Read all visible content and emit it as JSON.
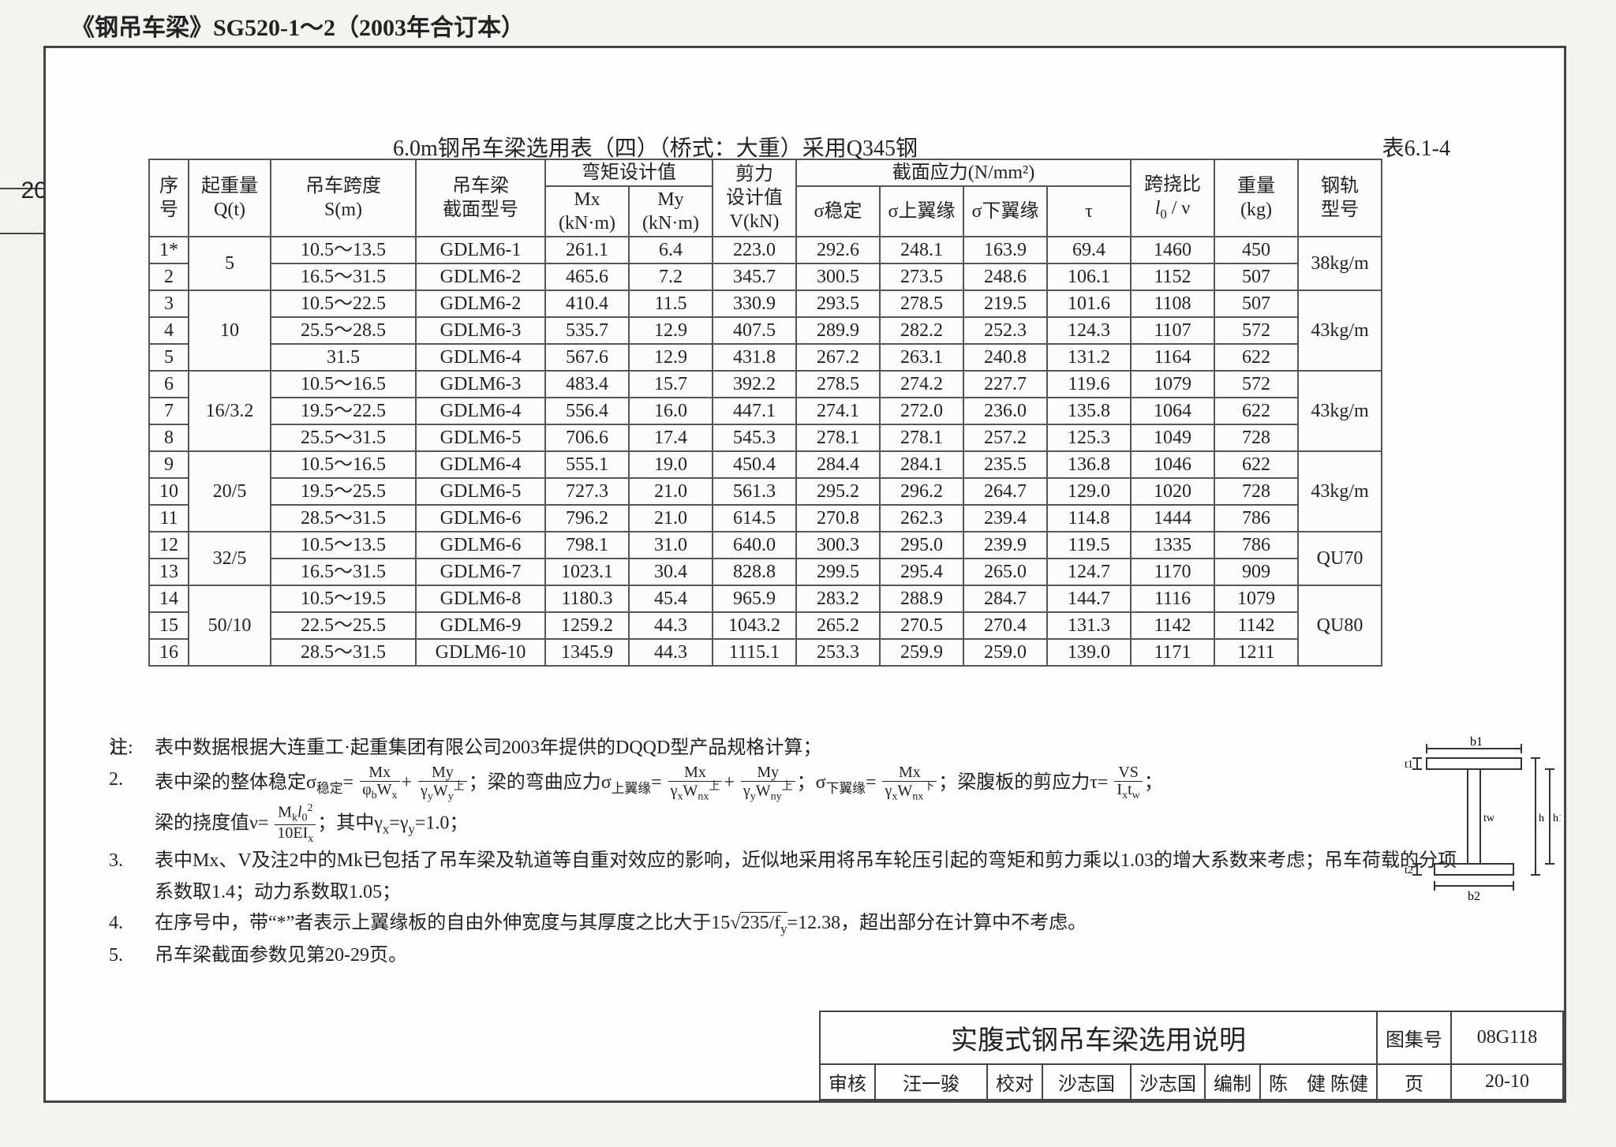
{
  "doc_title": "《钢吊车梁》SG520-1～2（2003年合订本）",
  "page_side_label": "20",
  "caption_text": "6.0m钢吊车梁选用表（四）（桥式：大重）采用Q345钢",
  "caption_number": "表6.1-4",
  "header": {
    "seq": "序号",
    "qt": "起重量Q(t)",
    "sm": "吊车跨度S(m)",
    "sect": "吊车梁截面型号",
    "bend": "弯矩设计值",
    "mx": "Mx(kN·m)",
    "my": "My(kN·m)",
    "shear_top": "剪力",
    "shear_bot": "设计值V(kN)",
    "stress": "截面应力(N/mm²)",
    "s1": "σ稳定",
    "s2": "σ上翼缘",
    "s3": "σ下翼缘",
    "s4": "τ",
    "defl": "跨挠比 l₀/ν",
    "wt": "重量(kg)",
    "rail": "钢轨型号"
  },
  "groups": [
    {
      "qt": "5",
      "rail": "38kg/m",
      "rows": [
        {
          "n": "1*",
          "sm": "10.5～13.5",
          "sect": "GDLM6-1",
          "mx": "261.1",
          "my": "6.4",
          "v": "223.0",
          "s1": "292.6",
          "s2": "248.1",
          "s3": "163.9",
          "s4": "69.4",
          "d": "1460",
          "w": "450"
        },
        {
          "n": "2",
          "sm": "16.5～31.5",
          "sect": "GDLM6-2",
          "mx": "465.6",
          "my": "7.2",
          "v": "345.7",
          "s1": "300.5",
          "s2": "273.5",
          "s3": "248.6",
          "s4": "106.1",
          "d": "1152",
          "w": "507"
        }
      ]
    },
    {
      "qt": "10",
      "rail": "43kg/m",
      "rows": [
        {
          "n": "3",
          "sm": "10.5～22.5",
          "sect": "GDLM6-2",
          "mx": "410.4",
          "my": "11.5",
          "v": "330.9",
          "s1": "293.5",
          "s2": "278.5",
          "s3": "219.5",
          "s4": "101.6",
          "d": "1108",
          "w": "507"
        },
        {
          "n": "4",
          "sm": "25.5～28.5",
          "sect": "GDLM6-3",
          "mx": "535.7",
          "my": "12.9",
          "v": "407.5",
          "s1": "289.9",
          "s2": "282.2",
          "s3": "252.3",
          "s4": "124.3",
          "d": "1107",
          "w": "572"
        },
        {
          "n": "5",
          "sm": "31.5",
          "sect": "GDLM6-4",
          "mx": "567.6",
          "my": "12.9",
          "v": "431.8",
          "s1": "267.2",
          "s2": "263.1",
          "s3": "240.8",
          "s4": "131.2",
          "d": "1164",
          "w": "622"
        }
      ]
    },
    {
      "qt": "16/3.2",
      "rail": "43kg/m",
      "rows": [
        {
          "n": "6",
          "sm": "10.5～16.5",
          "sect": "GDLM6-3",
          "mx": "483.4",
          "my": "15.7",
          "v": "392.2",
          "s1": "278.5",
          "s2": "274.2",
          "s3": "227.7",
          "s4": "119.6",
          "d": "1079",
          "w": "572"
        },
        {
          "n": "7",
          "sm": "19.5～22.5",
          "sect": "GDLM6-4",
          "mx": "556.4",
          "my": "16.0",
          "v": "447.1",
          "s1": "274.1",
          "s2": "272.0",
          "s3": "236.0",
          "s4": "135.8",
          "d": "1064",
          "w": "622"
        },
        {
          "n": "8",
          "sm": "25.5～31.5",
          "sect": "GDLM6-5",
          "mx": "706.6",
          "my": "17.4",
          "v": "545.3",
          "s1": "278.1",
          "s2": "278.1",
          "s3": "257.2",
          "s4": "125.3",
          "d": "1049",
          "w": "728"
        }
      ]
    },
    {
      "qt": "20/5",
      "rail": "43kg/m",
      "rows": [
        {
          "n": "9",
          "sm": "10.5～16.5",
          "sect": "GDLM6-4",
          "mx": "555.1",
          "my": "19.0",
          "v": "450.4",
          "s1": "284.4",
          "s2": "284.1",
          "s3": "235.5",
          "s4": "136.8",
          "d": "1046",
          "w": "622"
        },
        {
          "n": "10",
          "sm": "19.5～25.5",
          "sect": "GDLM6-5",
          "mx": "727.3",
          "my": "21.0",
          "v": "561.3",
          "s1": "295.2",
          "s2": "296.2",
          "s3": "264.7",
          "s4": "129.0",
          "d": "1020",
          "w": "728"
        },
        {
          "n": "11",
          "sm": "28.5～31.5",
          "sect": "GDLM6-6",
          "mx": "796.2",
          "my": "21.0",
          "v": "614.5",
          "s1": "270.8",
          "s2": "262.3",
          "s3": "239.4",
          "s4": "114.8",
          "d": "1444",
          "w": "786"
        }
      ]
    },
    {
      "qt": "32/5",
      "rail": "QU70",
      "rows": [
        {
          "n": "12",
          "sm": "10.5～13.5",
          "sect": "GDLM6-6",
          "mx": "798.1",
          "my": "31.0",
          "v": "640.0",
          "s1": "300.3",
          "s2": "295.0",
          "s3": "239.9",
          "s4": "119.5",
          "d": "1335",
          "w": "786"
        },
        {
          "n": "13",
          "sm": "16.5～31.5",
          "sect": "GDLM6-7",
          "mx": "1023.1",
          "my": "30.4",
          "v": "828.8",
          "s1": "299.5",
          "s2": "295.4",
          "s3": "265.0",
          "s4": "124.7",
          "d": "1170",
          "w": "909"
        }
      ]
    },
    {
      "qt": "50/10",
      "rail": "QU80",
      "rows": [
        {
          "n": "14",
          "sm": "10.5～19.5",
          "sect": "GDLM6-8",
          "mx": "1180.3",
          "my": "45.4",
          "v": "965.9",
          "s1": "283.2",
          "s2": "288.9",
          "s3": "284.7",
          "s4": "144.7",
          "d": "1116",
          "w": "1079"
        },
        {
          "n": "15",
          "sm": "22.5～25.5",
          "sect": "GDLM6-9",
          "mx": "1259.2",
          "my": "44.3",
          "v": "1043.2",
          "s1": "265.2",
          "s2": "270.5",
          "s3": "270.4",
          "s4": "131.3",
          "d": "1142",
          "w": "1142"
        },
        {
          "n": "16",
          "sm": "28.5～31.5",
          "sect": "GDLM6-10",
          "mx": "1345.9",
          "my": "44.3",
          "v": "1115.1",
          "s1": "253.3",
          "s2": "259.9",
          "s3": "259.0",
          "s4": "139.0",
          "d": "1171",
          "w": "1211"
        }
      ]
    }
  ],
  "notes_prefix": "注:",
  "notes": {
    "n1": "表中数据根据大连重工·起重集团有限公司2003年提供的DQQD型产品规格计算；",
    "n3": "表中Mx、V及注2中的Mk已包括了吊车梁及轨道等自重对效应的影响，近似地采用将吊车轮压引起的弯矩和剪力乘以1.03的增大系数来考虑；吊车荷载的分项系数取1.4；动力系数取1.05；",
    "n4a": "在序号中，带“*”者表示上翼缘板的自由外伸宽度与其厚度之比大于15",
    "n4b": "=12.38，超出部分在计算中不考虑。",
    "n5": "吊车梁截面参数见第20-29页。"
  },
  "title_block": {
    "main": "实腹式钢吊车梁选用说明",
    "atlas_label": "图集号",
    "atlas_val": "08G118",
    "review": "审核",
    "review_sign": "汪一骏",
    "check": "校对",
    "check_name": "沙志国",
    "check_sign": "沙志国",
    "draw": "编制",
    "draw_name": "陈　健",
    "draw_sign": "陈健",
    "page_label": "页",
    "page_val": "20-10"
  },
  "diagram_labels": {
    "b1": "b1",
    "b2": "b2",
    "t1": "t1",
    "t2": "t2",
    "tw": "tw",
    "h1": "h1",
    "h": "h"
  }
}
